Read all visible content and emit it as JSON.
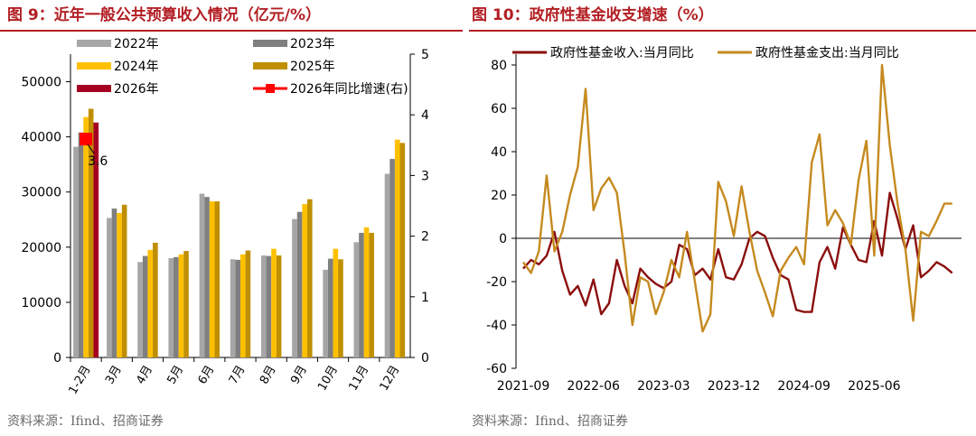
{
  "chart_data": [
    {
      "type": "bar",
      "title": "图 9：近年一般公共预算收入情况（亿元/%）",
      "source": "资料来源：Ifind、招商证券",
      "categories": [
        "1-2月",
        "3月",
        "4月",
        "5月",
        "6月",
        "7月",
        "8月",
        "9月",
        "10月",
        "11月",
        "12月"
      ],
      "yticks": [
        "0",
        "10000",
        "20000",
        "30000",
        "40000",
        "50000"
      ],
      "y2ticks": [
        "0",
        "1",
        "2",
        "3",
        "4",
        "5"
      ],
      "ylim": [
        0,
        55000
      ],
      "y2lim": [
        0,
        5
      ],
      "series": [
        {
          "name": "2022年",
          "color": "#a6a6a6",
          "values": [
            38200,
            25300,
            17300,
            18000,
            29700,
            17800,
            18500,
            25100,
            15900,
            20900,
            33300
          ]
        },
        {
          "name": "2023年",
          "color": "#7f7f7f",
          "values": [
            40800,
            27000,
            18400,
            18200,
            29100,
            17700,
            18400,
            26400,
            17900,
            22600,
            36000
          ]
        },
        {
          "name": "2024年",
          "color": "#ffc000",
          "values": [
            43600,
            26200,
            19500,
            18700,
            28300,
            18700,
            19700,
            27800,
            19700,
            23600,
            39500
          ]
        },
        {
          "name": "2025年",
          "color": "#bf8f00",
          "values": [
            45100,
            27700,
            20800,
            19300,
            28300,
            19400,
            18500,
            28700,
            17800,
            22600,
            38900
          ]
        },
        {
          "name": "2026年",
          "color": "#a50021",
          "values": [
            42600,
            null,
            null,
            null,
            null,
            null,
            null,
            null,
            null,
            null,
            null
          ]
        }
      ],
      "secondary_series": {
        "name": "2026年同比增速(右)",
        "color": "#ff0000",
        "values": [
          3.6,
          null,
          null,
          null,
          null,
          null,
          null,
          null,
          null,
          null,
          null
        ]
      },
      "annotation": "3.6",
      "legend": "top"
    },
    {
      "type": "line",
      "title": "图 10：政府性基金收支增速（%）",
      "source": "资料来源：Ifind、招商证券",
      "xticks": [
        "2021-09",
        "2022-06",
        "2023-03",
        "2023-12",
        "2024-09",
        "2025-06"
      ],
      "yticks": [
        "-60",
        "-40",
        "-20",
        "0",
        "20",
        "40",
        "60",
        "80"
      ],
      "ylim": [
        -60,
        85
      ],
      "x_start": "2021-09",
      "legend": "top",
      "series": [
        {
          "name": "政府性基金收入:当月同比",
          "color": "#8b0e0e",
          "values": [
            -14,
            -10,
            -12,
            -8,
            3,
            -15,
            -26,
            -22,
            -31,
            -19,
            -35,
            -30,
            -10,
            -22,
            -30,
            -14,
            -18,
            -21,
            -23,
            -20,
            -3,
            -5,
            -17,
            -14,
            -19,
            -5,
            -18,
            -19,
            -12,
            0,
            3,
            1,
            -9,
            -17,
            -19,
            -33,
            -34,
            -34,
            -11,
            -4,
            -14,
            5,
            -3,
            -10,
            -11,
            8,
            -8,
            21,
            9,
            -5,
            6,
            -18,
            -15,
            -11,
            -13,
            -16
          ]
        },
        {
          "name": "政府性基金支出:当月同比",
          "color": "#c58a1f",
          "values": [
            -11,
            -16,
            -6,
            29,
            -6,
            3,
            20,
            33,
            69,
            13,
            23,
            28,
            21,
            -7,
            -40,
            -18,
            -20,
            -35,
            -25,
            -10,
            -18,
            3,
            -20,
            -43,
            -35,
            26,
            17,
            1,
            24,
            3,
            -15,
            -25,
            -36,
            -15,
            -9,
            -4,
            -12,
            35,
            48,
            6,
            13,
            7,
            -3,
            27,
            45,
            -8,
            80,
            43,
            16,
            -5,
            -38,
            3,
            1,
            8,
            16,
            16
          ]
        }
      ]
    }
  ]
}
